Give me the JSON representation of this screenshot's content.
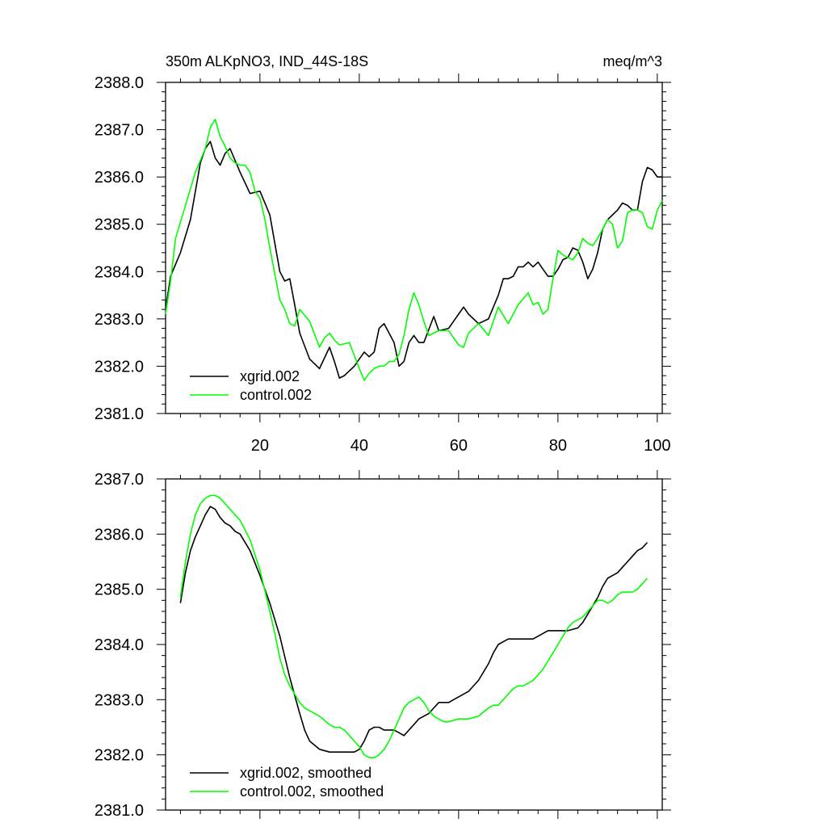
{
  "figure": {
    "title_left": "350m ALKpNO3, IND_44S-18S",
    "title_right": "meq/m^3"
  },
  "colors": {
    "xgrid": "#000000",
    "control": "#00ff00",
    "axis": "#000000",
    "background": "#ffffff"
  },
  "chart_data": [
    {
      "type": "line",
      "title": "350m ALKpNO3, IND_44S-18S",
      "units": "meq/m^3",
      "xlabel": "",
      "ylabel": "",
      "xlim": [
        1,
        101
      ],
      "ylim": [
        2381.0,
        2388.0
      ],
      "xticks": [
        20,
        40,
        60,
        80,
        100
      ],
      "xtick_labels": [
        "20",
        "40",
        "60",
        "80",
        "100"
      ],
      "yticks": [
        2381.0,
        2382.0,
        2383.0,
        2384.0,
        2385.0,
        2386.0,
        2387.0,
        2388.0
      ],
      "ytick_labels": [
        "2381.0",
        "2382.0",
        "2383.0",
        "2384.0",
        "2385.0",
        "2386.0",
        "2387.0",
        "2388.0"
      ],
      "legend_position": "bottom-left",
      "series": [
        {
          "name": "xgrid.002",
          "color": "#000000",
          "x": [
            1,
            2,
            4,
            6,
            8,
            9,
            10,
            11,
            12,
            13,
            14,
            16,
            18,
            20,
            22,
            24,
            25,
            26,
            27,
            28,
            30,
            32,
            34,
            35,
            36,
            37,
            39,
            41,
            42,
            43,
            44,
            45,
            47,
            48,
            49,
            50,
            51,
            52,
            53,
            55,
            56,
            58,
            60,
            61,
            62,
            64,
            66,
            68,
            69,
            70,
            71,
            72,
            73,
            74,
            75,
            76,
            77,
            78,
            79,
            80,
            81,
            82,
            83,
            84,
            85,
            86,
            87,
            88,
            89,
            90,
            91,
            92,
            93,
            94,
            95,
            96,
            97,
            98,
            99,
            100,
            101
          ],
          "y": [
            2383.2,
            2383.9,
            2384.4,
            2385.1,
            2386.3,
            2386.6,
            2386.75,
            2386.4,
            2386.25,
            2386.5,
            2386.6,
            2386.1,
            2385.65,
            2385.7,
            2385.2,
            2384.0,
            2383.8,
            2383.85,
            2383.3,
            2382.7,
            2382.15,
            2381.95,
            2382.4,
            2382.1,
            2381.75,
            2381.8,
            2382.0,
            2382.3,
            2382.2,
            2382.3,
            2382.8,
            2382.9,
            2382.5,
            2382.0,
            2382.1,
            2382.5,
            2382.65,
            2382.5,
            2382.5,
            2383.05,
            2382.75,
            2382.8,
            2383.1,
            2383.25,
            2383.1,
            2382.9,
            2383.0,
            2383.5,
            2383.85,
            2383.85,
            2383.9,
            2384.1,
            2384.1,
            2384.2,
            2384.1,
            2384.2,
            2384.05,
            2383.9,
            2383.9,
            2384.05,
            2384.25,
            2384.3,
            2384.5,
            2384.45,
            2384.2,
            2383.85,
            2384.05,
            2384.4,
            2384.9,
            2385.1,
            2385.2,
            2385.3,
            2385.45,
            2385.4,
            2385.3,
            2385.3,
            2385.9,
            2386.2,
            2386.15,
            2386.0,
            2386.0
          ]
        },
        {
          "name": "control.002",
          "color": "#00ff00",
          "x": [
            1,
            2,
            3,
            5,
            7,
            9,
            10,
            11,
            12,
            13,
            14,
            15,
            16,
            17,
            18,
            19,
            20,
            21,
            22,
            24,
            25,
            26,
            27,
            28,
            30,
            32,
            33,
            34,
            35,
            36,
            38,
            40,
            41,
            42,
            43,
            44,
            45,
            46,
            47,
            48,
            49,
            50,
            51,
            52,
            53,
            54,
            55,
            56,
            58,
            60,
            61,
            62,
            64,
            66,
            68,
            70,
            71,
            72,
            74,
            75,
            76,
            77,
            78,
            79,
            80,
            81,
            82,
            83,
            84,
            85,
            86,
            87,
            88,
            89,
            90,
            91,
            92,
            93,
            94,
            95,
            96,
            97,
            98,
            99,
            100,
            101
          ],
          "y": [
            2383.1,
            2383.8,
            2384.7,
            2385.4,
            2386.1,
            2386.6,
            2387.05,
            2387.22,
            2386.85,
            2386.65,
            2386.4,
            2386.3,
            2386.25,
            2386.25,
            2386.1,
            2385.7,
            2385.55,
            2385.1,
            2384.5,
            2383.4,
            2383.2,
            2382.9,
            2382.85,
            2383.2,
            2382.95,
            2382.4,
            2382.6,
            2382.7,
            2382.55,
            2382.45,
            2382.5,
            2381.95,
            2381.7,
            2381.85,
            2381.95,
            2382.0,
            2382.0,
            2382.1,
            2382.1,
            2382.25,
            2382.65,
            2383.2,
            2383.55,
            2383.3,
            2382.95,
            2382.65,
            2382.7,
            2382.75,
            2382.75,
            2382.45,
            2382.4,
            2382.7,
            2382.9,
            2382.65,
            2383.25,
            2382.9,
            2383.1,
            2383.3,
            2383.55,
            2383.3,
            2383.35,
            2383.1,
            2383.2,
            2383.85,
            2384.45,
            2384.35,
            2384.3,
            2384.25,
            2384.4,
            2384.7,
            2384.6,
            2384.55,
            2384.7,
            2384.9,
            2385.1,
            2385.0,
            2384.5,
            2384.65,
            2385.25,
            2385.3,
            2385.3,
            2385.25,
            2384.95,
            2384.9,
            2385.3,
            2385.5
          ]
        }
      ]
    },
    {
      "type": "line",
      "title": "",
      "xlabel": "",
      "ylabel": "",
      "xlim": [
        1,
        101
      ],
      "ylim": [
        2381.0,
        2387.0
      ],
      "xticks": [
        20,
        40,
        60,
        80,
        100
      ],
      "xtick_labels": [],
      "yticks": [
        2381.0,
        2382.0,
        2383.0,
        2384.0,
        2385.0,
        2386.0,
        2387.0
      ],
      "ytick_labels": [
        "2381.0",
        "2382.0",
        "2383.0",
        "2384.0",
        "2385.0",
        "2386.0",
        "2387.0"
      ],
      "legend_position": "bottom-left",
      "series": [
        {
          "name": "xgrid.002, smoothed",
          "color": "#000000",
          "x": [
            4,
            5,
            6,
            7,
            8,
            9,
            10,
            11,
            12,
            13,
            14,
            15,
            16,
            18,
            20,
            22,
            24,
            26,
            28,
            29,
            30,
            32,
            34,
            35,
            36,
            38,
            39,
            40,
            41,
            42,
            43,
            44,
            45,
            46,
            47,
            48,
            49,
            50,
            51,
            52,
            54,
            55,
            56,
            57,
            58,
            59,
            60,
            62,
            64,
            66,
            67,
            68,
            69,
            70,
            71,
            72,
            73,
            74,
            75,
            76,
            77,
            78,
            79,
            80,
            81,
            82,
            84,
            85,
            86,
            87,
            88,
            89,
            90,
            91,
            92,
            93,
            94,
            95,
            96,
            97,
            98
          ],
          "y": [
            2384.75,
            2385.3,
            2385.7,
            2385.95,
            2386.15,
            2386.35,
            2386.5,
            2386.45,
            2386.3,
            2386.2,
            2386.15,
            2386.05,
            2386.0,
            2385.7,
            2385.25,
            2384.75,
            2384.15,
            2383.4,
            2382.75,
            2382.45,
            2382.25,
            2382.1,
            2382.05,
            2382.05,
            2382.05,
            2382.05,
            2382.05,
            2382.1,
            2382.25,
            2382.45,
            2382.5,
            2382.5,
            2382.45,
            2382.45,
            2382.45,
            2382.4,
            2382.35,
            2382.45,
            2382.55,
            2382.65,
            2382.75,
            2382.85,
            2382.95,
            2382.95,
            2382.95,
            2383.0,
            2383.05,
            2383.15,
            2383.35,
            2383.65,
            2383.85,
            2384.0,
            2384.05,
            2384.1,
            2384.1,
            2384.1,
            2384.1,
            2384.1,
            2384.1,
            2384.15,
            2384.2,
            2384.25,
            2384.25,
            2384.25,
            2384.25,
            2384.25,
            2384.3,
            2384.4,
            2384.55,
            2384.7,
            2384.85,
            2385.05,
            2385.2,
            2385.25,
            2385.3,
            2385.4,
            2385.5,
            2385.6,
            2385.7,
            2385.75,
            2385.85
          ]
        },
        {
          "name": "control.002, smoothed",
          "color": "#00ff00",
          "x": [
            4,
            5,
            6,
            7,
            8,
            9,
            10,
            11,
            12,
            13,
            14,
            15,
            16,
            18,
            20,
            22,
            23,
            24,
            25,
            26,
            28,
            29,
            30,
            31,
            32,
            34,
            35,
            36,
            37,
            38,
            39,
            40,
            41,
            42,
            43,
            44,
            45,
            46,
            47,
            48,
            49,
            50,
            51,
            52,
            53,
            54,
            55,
            56,
            57,
            58,
            60,
            62,
            64,
            66,
            67,
            68,
            69,
            70,
            71,
            72,
            73,
            74,
            75,
            76,
            77,
            78,
            79,
            80,
            81,
            82,
            83,
            84,
            85,
            86,
            87,
            88,
            89,
            90,
            91,
            92,
            93,
            94,
            95,
            96,
            97,
            98
          ],
          "y": [
            2384.85,
            2385.5,
            2386.0,
            2386.35,
            2386.55,
            2386.65,
            2386.7,
            2386.7,
            2386.65,
            2386.55,
            2386.45,
            2386.35,
            2386.25,
            2385.9,
            2385.35,
            2384.6,
            2384.2,
            2383.75,
            2383.45,
            2383.25,
            2382.95,
            2382.85,
            2382.8,
            2382.75,
            2382.7,
            2382.55,
            2382.5,
            2382.5,
            2382.45,
            2382.35,
            2382.25,
            2382.15,
            2382.0,
            2381.95,
            2381.95,
            2382.0,
            2382.1,
            2382.25,
            2382.45,
            2382.65,
            2382.85,
            2382.95,
            2383.0,
            2383.05,
            2382.95,
            2382.8,
            2382.7,
            2382.65,
            2382.6,
            2382.6,
            2382.65,
            2382.65,
            2382.7,
            2382.85,
            2382.9,
            2382.9,
            2383.0,
            2383.1,
            2383.2,
            2383.25,
            2383.25,
            2383.3,
            2383.35,
            2383.45,
            2383.55,
            2383.7,
            2383.85,
            2384.0,
            2384.15,
            2384.3,
            2384.4,
            2384.45,
            2384.5,
            2384.6,
            2384.7,
            2384.8,
            2384.8,
            2384.75,
            2384.8,
            2384.9,
            2384.95,
            2384.95,
            2384.95,
            2385.0,
            2385.1,
            2385.2
          ]
        }
      ]
    }
  ]
}
